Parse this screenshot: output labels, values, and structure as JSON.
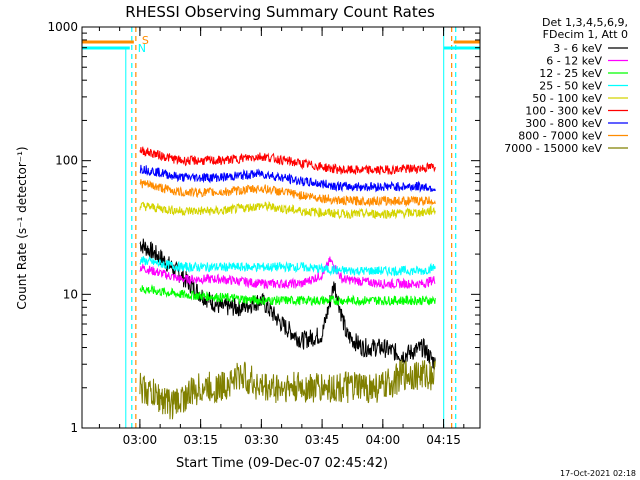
{
  "chart_data": {
    "type": "line",
    "title": "RHESSI Observing Summary Count Rates",
    "xlabel": "Start Time (09-Dec-07 02:45:42)",
    "ylabel": "Count Rate (s⁻¹ detector⁻¹)",
    "yscale": "log",
    "ylim": [
      1,
      1000
    ],
    "xlim": [
      "02:45:42",
      "04:24:00"
    ],
    "y_ticks": [
      "1",
      "10",
      "100",
      "1000"
    ],
    "x_ticks": [
      "03:00",
      "03:15",
      "03:30",
      "03:45",
      "04:00",
      "04:15"
    ],
    "legend_position": "top-right",
    "legend_header": [
      "Det 1,3,4,5,6,9,",
      "FDecim 1, Att 0"
    ],
    "markers": {
      "S": "S",
      "N": "N"
    },
    "footer_timestamp": "17-Oct-2021 02:18",
    "series": [
      {
        "name": "3 - 6 keV",
        "color": "#000000",
        "x": [
          "03:00",
          "03:05",
          "03:10",
          "03:15",
          "03:20",
          "03:25",
          "03:30",
          "03:35",
          "03:40",
          "03:45",
          "03:48",
          "03:51",
          "03:55",
          "04:00",
          "04:05",
          "04:10",
          "04:13"
        ],
        "values": [
          24,
          19,
          14,
          10,
          8,
          8,
          9,
          6,
          4.5,
          5,
          12,
          5,
          4,
          4,
          3.5,
          4,
          3
        ]
      },
      {
        "name": "6 - 12 keV",
        "color": "#ff00ff",
        "x": [
          "03:00",
          "03:10",
          "03:20",
          "03:30",
          "03:40",
          "03:45",
          "03:47",
          "03:50",
          "04:00",
          "04:10",
          "04:13"
        ],
        "values": [
          16,
          13,
          13,
          12,
          12,
          14,
          18,
          13,
          12,
          12,
          13
        ]
      },
      {
        "name": "12 - 25 keV",
        "color": "#00ff00",
        "x": [
          "03:00",
          "03:10",
          "03:20",
          "03:30",
          "03:40",
          "03:50",
          "04:00",
          "04:10",
          "04:13"
        ],
        "values": [
          11,
          10,
          9.5,
          9,
          9,
          9,
          9,
          9,
          9
        ]
      },
      {
        "name": "25 - 50 keV",
        "color": "#00ffff",
        "x": [
          "03:00",
          "03:10",
          "03:20",
          "03:30",
          "03:40",
          "03:50",
          "04:00",
          "04:10",
          "04:13"
        ],
        "values": [
          18,
          16,
          16,
          16,
          16,
          15,
          15,
          15,
          16
        ]
      },
      {
        "name": "50 - 100 keV",
        "color": "#d4d400",
        "x": [
          "03:00",
          "03:10",
          "03:20",
          "03:30",
          "03:40",
          "03:50",
          "04:00",
          "04:10",
          "04:13"
        ],
        "values": [
          46,
          42,
          42,
          46,
          42,
          40,
          40,
          41,
          43
        ]
      },
      {
        "name": "100 - 300 keV",
        "color": "#ff0000",
        "x": [
          "03:00",
          "03:10",
          "03:20",
          "03:30",
          "03:40",
          "03:50",
          "04:00",
          "04:10",
          "04:13"
        ],
        "values": [
          120,
          100,
          100,
          108,
          95,
          85,
          85,
          88,
          90
        ]
      },
      {
        "name": "300 - 800 keV",
        "color": "#0000ff",
        "x": [
          "03:00",
          "03:10",
          "03:20",
          "03:30",
          "03:40",
          "03:50",
          "04:00",
          "04:10",
          "04:13"
        ],
        "values": [
          88,
          75,
          75,
          80,
          70,
          64,
          64,
          64,
          62
        ]
      },
      {
        "name": "800 - 7000 keV",
        "color": "#ff8c00",
        "x": [
          "03:00",
          "03:10",
          "03:20",
          "03:30",
          "03:40",
          "03:50",
          "04:00",
          "04:10",
          "04:13"
        ],
        "values": [
          68,
          58,
          58,
          62,
          55,
          50,
          50,
          50,
          50
        ]
      },
      {
        "name": "7000 - 15000 keV",
        "color": "#808000",
        "x": [
          "03:00",
          "03:08",
          "03:15",
          "03:20",
          "03:25",
          "03:30",
          "03:40",
          "03:50",
          "04:00",
          "04:05",
          "04:13"
        ],
        "values": [
          2,
          1.5,
          2,
          2,
          2.5,
          2,
          2,
          2,
          2,
          2.5,
          2.5
        ]
      }
    ],
    "vertical_markers": [
      {
        "label": "S",
        "x": "02:59",
        "color": "#ff8c00",
        "style": "dashed"
      },
      {
        "label": "N",
        "x": "02:58",
        "color": "#00ffff",
        "style": "dashed"
      },
      {
        "label": "S",
        "x": "04:17",
        "color": "#ff8c00",
        "style": "dashed"
      },
      {
        "label": "N",
        "x": "04:18",
        "color": "#00ffff",
        "style": "dashed"
      }
    ]
  }
}
